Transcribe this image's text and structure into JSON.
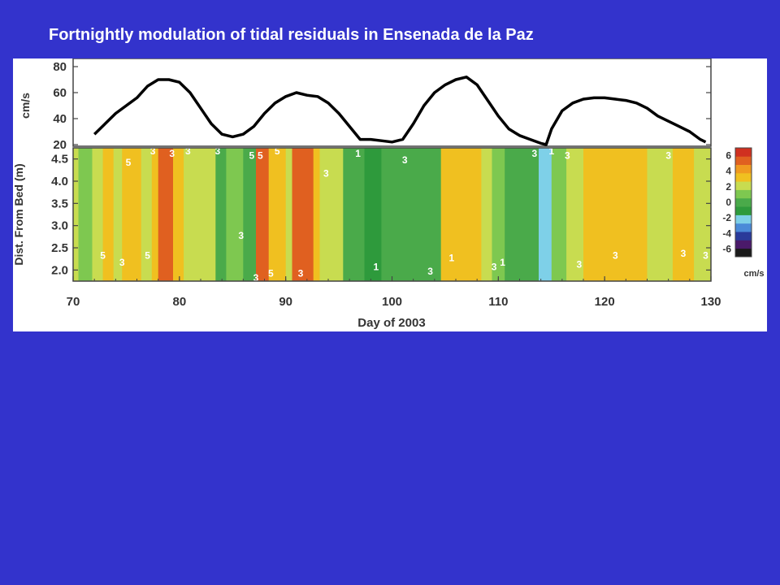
{
  "slide": {
    "title": "Fortnightly modulation of tidal residuals in Ensenada de la Paz"
  },
  "colors": {
    "background": "#3333cc",
    "panel": "#ffffff",
    "line": "#000000",
    "colorbar": [
      "#1a1a1a",
      "#4a1a6a",
      "#2a3a9a",
      "#4a8ad8",
      "#7ed0e8",
      "#2e9a3c",
      "#4aaa4a",
      "#7ec850",
      "#c8dc50",
      "#f0c020",
      "#f09a20",
      "#e06020",
      "#d03020"
    ]
  },
  "chart_data": [
    {
      "type": "line",
      "title": "",
      "xlabel": "",
      "ylabel": "cm/s",
      "xlim": [
        70,
        130
      ],
      "ylim": [
        20,
        85
      ],
      "yticks": [
        "20",
        "40",
        "60",
        "80"
      ],
      "series": [
        {
          "x": [
            72,
            73,
            74,
            75,
            76,
            77,
            78,
            79,
            80,
            81,
            82,
            83,
            84,
            85,
            86,
            87,
            88,
            89,
            90,
            91,
            92,
            93,
            94,
            95,
            96,
            97,
            98,
            99,
            100,
            101,
            102,
            103,
            104,
            105,
            106,
            107,
            108,
            109,
            110,
            111,
            112,
            113,
            114,
            114.5,
            115,
            116,
            117,
            118,
            119,
            120,
            121,
            122,
            123,
            124,
            125,
            126,
            127,
            128,
            129,
            129.5
          ],
          "y": [
            28,
            36,
            44,
            50,
            56,
            65,
            70,
            70,
            68,
            60,
            48,
            36,
            28,
            26,
            28,
            34,
            44,
            52,
            57,
            60,
            58,
            57,
            52,
            44,
            34,
            24,
            24,
            23,
            22,
            24,
            36,
            50,
            60,
            66,
            70,
            72,
            66,
            54,
            42,
            32,
            27,
            24,
            21,
            20,
            32,
            46,
            52,
            55,
            56,
            56,
            55,
            54,
            52,
            48,
            42,
            38,
            34,
            30,
            24,
            22
          ]
        }
      ]
    },
    {
      "type": "heatmap",
      "title": "",
      "xlabel": "Day of 2003",
      "ylabel": "Dist. From Bed (m)",
      "xlim": [
        70,
        130
      ],
      "ylim": [
        1.75,
        4.75
      ],
      "xticks": [
        "70",
        "80",
        "90",
        "100",
        "110",
        "120",
        "130"
      ],
      "yticks": [
        "2.0",
        "2.5",
        "3.0",
        "3.5",
        "4.0",
        "4.5"
      ],
      "colorbar": {
        "ticks": [
          "6",
          "4",
          "2",
          "0",
          "-2",
          "-4",
          "-6"
        ],
        "unit": "cm/s",
        "range": [
          -7,
          7
        ]
      },
      "contour_labels": [
        "5",
        "3",
        "3",
        "3",
        "3",
        "5",
        "5",
        "5",
        "3",
        "1",
        "3",
        "5",
        "3",
        "3",
        "5",
        "3",
        "5",
        "3",
        "1",
        "3",
        "1",
        "3",
        "1",
        "3",
        "1",
        "3",
        "3",
        "3",
        "3",
        "3",
        "3"
      ],
      "columns": [
        {
          "x0": 70.5,
          "x1": 71.8,
          "value": 2.0
        },
        {
          "x0": 71.8,
          "x1": 72.8,
          "value": 3.0
        },
        {
          "x0": 72.8,
          "x1": 73.8,
          "value": 4.0
        },
        {
          "x0": 73.8,
          "x1": 74.6,
          "value": 3.0
        },
        {
          "x0": 74.6,
          "x1": 76.4,
          "value": 4.2
        },
        {
          "x0": 76.4,
          "x1": 77.4,
          "value": 3.0
        },
        {
          "x0": 77.4,
          "x1": 78.0,
          "value": 4.0
        },
        {
          "x0": 78.0,
          "x1": 79.4,
          "value": 5.3
        },
        {
          "x0": 79.4,
          "x1": 80.4,
          "value": 4.0
        },
        {
          "x0": 80.4,
          "x1": 83.4,
          "value": 3.0
        },
        {
          "x0": 83.4,
          "x1": 84.4,
          "value": 1.6
        },
        {
          "x0": 84.4,
          "x1": 86.0,
          "value": 2.4
        },
        {
          "x0": 86.0,
          "x1": 87.2,
          "value": 1.0
        },
        {
          "x0": 87.2,
          "x1": 88.4,
          "value": 5.3
        },
        {
          "x0": 88.4,
          "x1": 90.0,
          "value": 4.0
        },
        {
          "x0": 90.0,
          "x1": 90.6,
          "value": 3.0
        },
        {
          "x0": 90.6,
          "x1": 92.6,
          "value": 5.3
        },
        {
          "x0": 92.6,
          "x1": 93.2,
          "value": 4.0
        },
        {
          "x0": 93.2,
          "x1": 95.4,
          "value": 3.0
        },
        {
          "x0": 95.4,
          "x1": 97.4,
          "value": 1.8
        },
        {
          "x0": 97.4,
          "x1": 99.0,
          "value": 0.8
        },
        {
          "x0": 99.0,
          "x1": 103.2,
          "value": 1.0
        },
        {
          "x0": 103.2,
          "x1": 104.6,
          "value": 1.8
        },
        {
          "x0": 104.6,
          "x1": 108.4,
          "value": 4.0
        },
        {
          "x0": 108.4,
          "x1": 109.4,
          "value": 3.0
        },
        {
          "x0": 109.4,
          "x1": 110.6,
          "value": 2.0
        },
        {
          "x0": 110.6,
          "x1": 112.2,
          "value": 1.0
        },
        {
          "x0": 112.2,
          "x1": 113.8,
          "value": 1.6
        },
        {
          "x0": 113.8,
          "x1": 115.0,
          "value": -0.4
        },
        {
          "x0": 115.0,
          "x1": 116.4,
          "value": 2.4
        },
        {
          "x0": 116.4,
          "x1": 118.0,
          "value": 3.0
        },
        {
          "x0": 118.0,
          "x1": 124.0,
          "value": 4.0
        },
        {
          "x0": 124.0,
          "x1": 126.4,
          "value": 3.0
        },
        {
          "x0": 126.4,
          "x1": 128.4,
          "value": 4.0
        },
        {
          "x0": 128.4,
          "x1": 129.6,
          "value": 3.0
        }
      ]
    }
  ]
}
